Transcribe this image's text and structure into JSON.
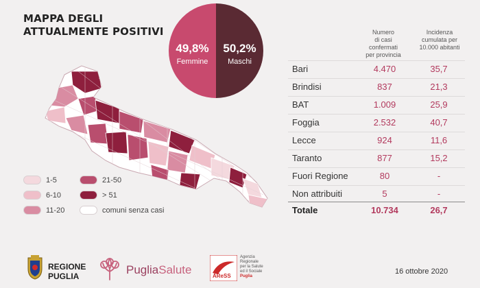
{
  "title": {
    "line1": "MAPPA DEGLI",
    "line2": "ATTUALMENTE POSITIVI"
  },
  "gender": {
    "female": {
      "pct": "49,8%",
      "label": "Femmine",
      "value": 49.8,
      "color": "#c84a6e"
    },
    "male": {
      "pct": "50,2%",
      "label": "Maschi",
      "value": 50.2,
      "color": "#5a2a33"
    }
  },
  "table": {
    "header_cases": [
      "Numero",
      "di casi confermati",
      "per provincia"
    ],
    "header_incidence": [
      "Incidenza",
      "cumulata per",
      "10.000 abitanti"
    ],
    "rows": [
      {
        "name": "Bari",
        "cases": "4.470",
        "incidence": "35,7"
      },
      {
        "name": "Brindisi",
        "cases": "837",
        "incidence": "21,3"
      },
      {
        "name": "BAT",
        "cases": "1.009",
        "incidence": "25,9"
      },
      {
        "name": "Foggia",
        "cases": "2.532",
        "incidence": "40,7"
      },
      {
        "name": "Lecce",
        "cases": "924",
        "incidence": "11,6"
      },
      {
        "name": "Taranto",
        "cases": "877",
        "incidence": "15,2"
      },
      {
        "name": "Fuori Regione",
        "cases": "80",
        "incidence": "-"
      },
      {
        "name": "Non attribuiti",
        "cases": "5",
        "incidence": "-"
      }
    ],
    "total": {
      "name": "Totale",
      "cases": "10.734",
      "incidence": "26,7"
    }
  },
  "legend": [
    {
      "label": "1-5",
      "color": "#f4d9de"
    },
    {
      "label": "6-10",
      "color": "#efbfc9"
    },
    {
      "label": "11-20",
      "color": "#d98ca2"
    },
    {
      "label": "21-50",
      "color": "#b94e6e"
    },
    {
      "label": "> 51",
      "color": "#8e1f3d"
    },
    {
      "label": "comuni senza casi",
      "color": "#ffffff"
    }
  ],
  "colors": {
    "accent": "#b2395d",
    "background": "#f2f0f0"
  },
  "footer": {
    "regione": [
      "REGIONE",
      "PUGLIA"
    ],
    "puglia_salute": [
      "Puglia",
      "Salute"
    ],
    "aress_logo": "AReSS",
    "aress_desc": [
      "Agenzia",
      "Regionale",
      "per la Salute",
      "ed il Sociale",
      "Puglia"
    ],
    "date": "16 ottobre 2020"
  }
}
